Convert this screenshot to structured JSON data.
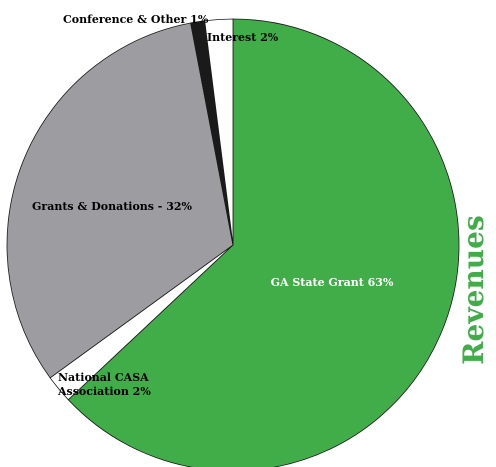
{
  "chart_data": {
    "type": "pie",
    "title": "Revenues",
    "slices": [
      {
        "label": "GA State Grant 63%",
        "value": 63,
        "color": "#41ad49"
      },
      {
        "label": "National CASA Association 2%",
        "value": 2,
        "color": "#ffffff"
      },
      {
        "label": "Grants & Donations - 32%",
        "value": 32,
        "color": "#9c9ca1"
      },
      {
        "label": "Conference & Other 1%",
        "value": 1,
        "color": "#1a1a1a"
      },
      {
        "label": "Interest 2%",
        "value": 2,
        "color": "#ffffff"
      }
    ],
    "title_color": "#41ad49",
    "outline_color": "#1a1a1a"
  }
}
